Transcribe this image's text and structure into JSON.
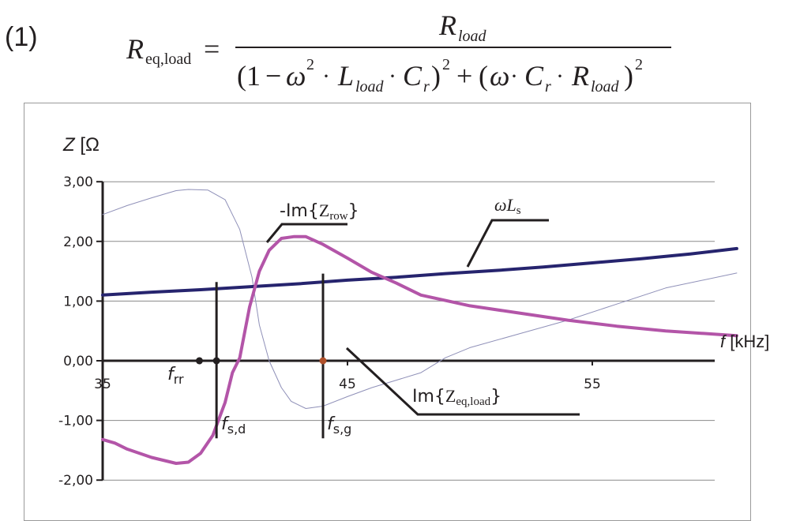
{
  "equation": {
    "number": "(1)",
    "lhs_main": "R",
    "lhs_sub": "eq,load",
    "equals": "=",
    "numerator_main": "R",
    "numerator_sub": "load",
    "denominator": {
      "open1": "(1",
      "minus": "−",
      "omega": "ω",
      "sq": "2",
      "dot": "·",
      "L": "L",
      "L_sub": "load",
      "C": "C",
      "C_sub": "r",
      "close_sq": ")",
      "plus": "+",
      "open2": "(",
      "R": "R",
      "R_sub": "load"
    }
  },
  "chart_data": {
    "type": "line",
    "title": "",
    "ylabel": "Z [Ω",
    "xlabel": "f [kHz]",
    "xlim": [
      35,
      63
    ],
    "ylim": [
      -2,
      3
    ],
    "x_ticks": [
      35,
      45,
      55
    ],
    "x_tick_labels": [
      "35",
      "45",
      "55"
    ],
    "y_ticks": [
      3,
      2,
      1,
      0,
      -1,
      -2
    ],
    "y_tick_labels": [
      "3,00",
      "2,00",
      "1,00",
      "0,00",
      "-1,00",
      "-2,00"
    ],
    "grid": true,
    "series": [
      {
        "name": "ωLs",
        "label_main": "ωL",
        "label_sub": "s",
        "color": "#26246e",
        "width": 4,
        "x": [
          35,
          37,
          39,
          41,
          43,
          45,
          47,
          49,
          51,
          53,
          55,
          57,
          59,
          60.9
        ],
        "y": [
          1.1,
          1.15,
          1.19,
          1.24,
          1.29,
          1.35,
          1.4,
          1.46,
          1.51,
          1.57,
          1.64,
          1.71,
          1.79,
          1.88
        ]
      },
      {
        "name": "-Im{Zrow}",
        "label_prefix": "-Im{",
        "label_main": "Z",
        "label_sub": "row",
        "label_suffix": "}",
        "color": "#b355a8",
        "width": 4,
        "x": [
          35,
          35.5,
          36,
          37,
          38,
          38.5,
          39,
          39.5,
          40,
          40.3,
          40.6,
          41,
          41.4,
          41.8,
          42.3,
          42.8,
          43.3,
          44,
          45,
          46,
          47,
          48,
          50,
          52,
          54,
          56,
          58,
          60.9
        ],
        "y": [
          -1.32,
          -1.38,
          -1.48,
          -1.62,
          -1.72,
          -1.7,
          -1.55,
          -1.25,
          -0.7,
          -0.2,
          0.05,
          0.9,
          1.5,
          1.85,
          2.05,
          2.08,
          2.08,
          1.95,
          1.72,
          1.48,
          1.3,
          1.1,
          0.92,
          0.8,
          0.68,
          0.58,
          0.5,
          0.42
        ]
      },
      {
        "name": "Im{Zeq,load}",
        "label_prefix": "Im{",
        "label_main": "Z",
        "label_sub": "eq,load",
        "label_suffix": "}",
        "color": "#8f90b8",
        "width": 1,
        "x": [
          35,
          36,
          37,
          38,
          38.5,
          39.3,
          40,
          40.6,
          41.1,
          41.4,
          41.8,
          42.3,
          42.7,
          43.3,
          44,
          45,
          46,
          48,
          49,
          50,
          52,
          54,
          56,
          58,
          60.9
        ],
        "y": [
          2.45,
          2.6,
          2.73,
          2.85,
          2.87,
          2.86,
          2.7,
          2.2,
          1.4,
          0.6,
          0.0,
          -0.45,
          -0.68,
          -0.8,
          -0.76,
          -0.6,
          -0.45,
          -0.2,
          0.05,
          0.22,
          0.45,
          0.68,
          0.95,
          1.22,
          1.47
        ]
      }
    ],
    "markers": [
      {
        "name": "f_rr",
        "label_main": "f",
        "label_sub": "rr",
        "x": 38.95,
        "y": 0,
        "color": "#231f20",
        "vline": false
      },
      {
        "name": "f_s,d",
        "label_main": "f",
        "label_sub": "s,d",
        "x": 39.65,
        "y": 0,
        "color": "#231f20",
        "vline": true,
        "vline_top": 1.32,
        "vline_bottom": -1.3
      },
      {
        "name": "f_s,g",
        "label_main": "f",
        "label_sub": "s,g",
        "x": 44.0,
        "y": 0,
        "color": "#b0502a",
        "vline": true,
        "vline_top": 1.46,
        "vline_bottom": -1.3
      }
    ]
  }
}
